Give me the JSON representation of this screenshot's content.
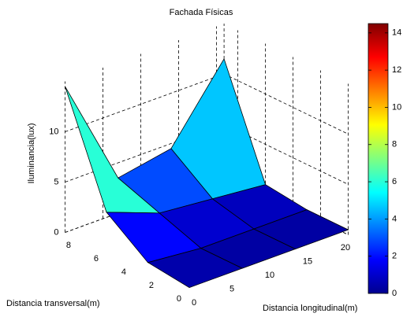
{
  "chart_data": {
    "type": "surface",
    "title": "Fachada Físicas",
    "xlabel": "Distancia longitudinal(m)",
    "ylabel": "Distancia transversal(m)",
    "zlabel": "Iluminancia(lux)",
    "x": [
      0,
      7,
      14,
      21
    ],
    "y": [
      0,
      3,
      6,
      9
    ],
    "z": [
      [
        0.5,
        0.5,
        0.5,
        0.5
      ],
      [
        1,
        0.5,
        0.5,
        0.5
      ],
      [
        4,
        2,
        1.5,
        1
      ],
      [
        14.5,
        3.5,
        4.5,
        11.5
      ]
    ],
    "xlim": [
      0,
      21
    ],
    "ylim": [
      0,
      9
    ],
    "zlim": [
      0,
      15
    ],
    "xticks": [
      0,
      5,
      10,
      15,
      20
    ],
    "yticks": [
      0,
      2,
      4,
      6,
      8
    ],
    "zticks": [
      0,
      5,
      10
    ],
    "colormap": "jet",
    "clim": [
      0,
      14.5
    ],
    "cticks": [
      0,
      2,
      4,
      6,
      8,
      10,
      12,
      14
    ],
    "grid": true
  }
}
